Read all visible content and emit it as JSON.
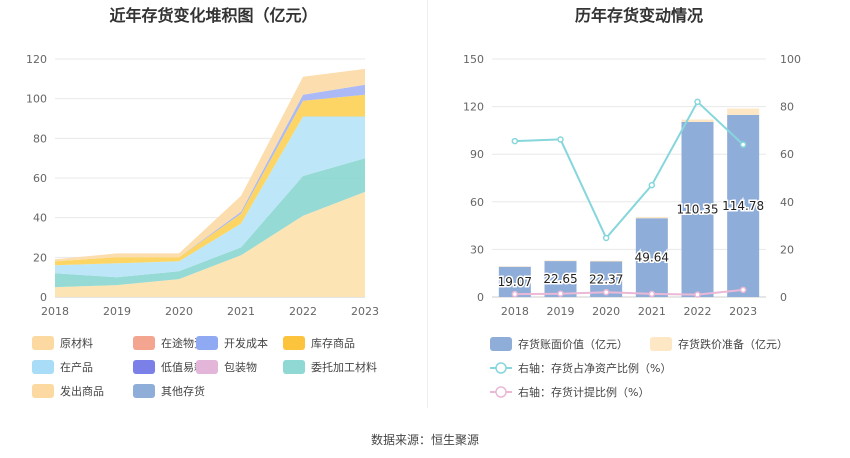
{
  "source": "数据来源：恒生聚源",
  "chart_data": [
    {
      "type": "area",
      "stacked": true,
      "title": "近年存货变化堆积图（亿元）",
      "categories": [
        "2018",
        "2019",
        "2020",
        "2021",
        "2022",
        "2023"
      ],
      "ylim": [
        0,
        120
      ],
      "yticks": [
        0,
        20,
        40,
        60,
        80,
        100,
        120
      ],
      "series": [
        {
          "name": "原材料",
          "color": "#fde3b0",
          "values": [
            5,
            6,
            9,
            21,
            41,
            53
          ]
        },
        {
          "name": "在途物资",
          "color": "#f4a58f",
          "values": [
            0,
            0,
            0,
            0,
            0,
            0
          ]
        },
        {
          "name": "开发成本",
          "color": "#8fa9f2",
          "values": [
            0,
            0,
            0,
            0,
            0,
            0
          ]
        },
        {
          "name": "库存商品",
          "color": "#fdd35c",
          "values": [
            0,
            0,
            0,
            0,
            0,
            0
          ]
        },
        {
          "name": "在产品",
          "color": "#aee0f7",
          "values": [
            0,
            0,
            0,
            0,
            0,
            0
          ]
        },
        {
          "name": "低值易耗品",
          "color": "#7b80e8",
          "values": [
            0,
            0,
            0,
            0,
            0,
            0
          ]
        },
        {
          "name": "包装物",
          "color": "#e3b5d8",
          "values": [
            0,
            0,
            0,
            0,
            0,
            0
          ]
        },
        {
          "name": "委托加工材料",
          "color": "#8fd8d3",
          "values": [
            7,
            4,
            4,
            4,
            20,
            17
          ]
        },
        {
          "name": "在产品(2)",
          "color": "#b9e5f8",
          "values": [
            4,
            7,
            5,
            12,
            30,
            21
          ]
        },
        {
          "name": "库存商品(2)",
          "color": "#fdd35c",
          "values": [
            2,
            3,
            2,
            5,
            8,
            11
          ]
        },
        {
          "name": "开发成本(2)",
          "color": "#a6b5f5",
          "values": [
            0,
            0,
            0,
            1,
            3,
            5
          ]
        },
        {
          "name": "发出商品",
          "color": "#fcdcaa",
          "values": [
            1,
            2,
            2,
            8,
            9,
            8
          ]
        },
        {
          "name": "其他存货",
          "color": "#8fadd9",
          "values": [
            0,
            0,
            0,
            0,
            0,
            0
          ]
        }
      ],
      "legend": [
        {
          "label": "原材料",
          "color": "#fcd9a0"
        },
        {
          "label": "在途物资",
          "color": "#f4a58f"
        },
        {
          "label": "开发成本",
          "color": "#8fa9f2"
        },
        {
          "label": "库存商品",
          "color": "#fcc43c"
        },
        {
          "label": "在产品",
          "color": "#a9dcf7"
        },
        {
          "label": "低值易耗品",
          "color": "#7b80e8"
        },
        {
          "label": "包装物",
          "color": "#e3b5d8"
        },
        {
          "label": "委托加工材料",
          "color": "#8fd8d3"
        },
        {
          "label": "发出商品",
          "color": "#fcd9a0"
        },
        {
          "label": "其他存货",
          "color": "#8fadd9"
        }
      ]
    },
    {
      "type": "bar+line",
      "title": "历年存货变动情况",
      "categories": [
        "2018",
        "2019",
        "2020",
        "2021",
        "2022",
        "2023"
      ],
      "ylim_left": [
        0,
        150
      ],
      "yticks_left": [
        0,
        30,
        60,
        90,
        120,
        150
      ],
      "ylim_right": [
        0,
        100
      ],
      "yticks_right": [
        0,
        20,
        40,
        60,
        80,
        100
      ],
      "bar_book_value": {
        "name": "存货账面价值（亿元）",
        "color": "#8fadd9",
        "values": [
          19.07,
          22.65,
          22.37,
          49.64,
          110.35,
          114.78
        ],
        "labels": [
          "19.07",
          "22.65",
          "22.37",
          "49.64",
          "110.35",
          "114.78"
        ]
      },
      "bar_impairment": {
        "name": "存货跌价准备（亿元）",
        "color": "#fde7c4",
        "values": [
          0.3,
          0.4,
          0.5,
          0.8,
          1.5,
          4.0
        ]
      },
      "line_ratio": {
        "name": "右轴：存货占净资产比例（%）",
        "color": "#86d6dc",
        "values": [
          65.5,
          66.2,
          24.8,
          47,
          82,
          64
        ]
      },
      "line_provision": {
        "name": "右轴：存货计提比例（%）",
        "color": "#ebb8d6",
        "values": [
          1.2,
          1.4,
          2,
          1.3,
          1,
          3
        ]
      }
    }
  ]
}
